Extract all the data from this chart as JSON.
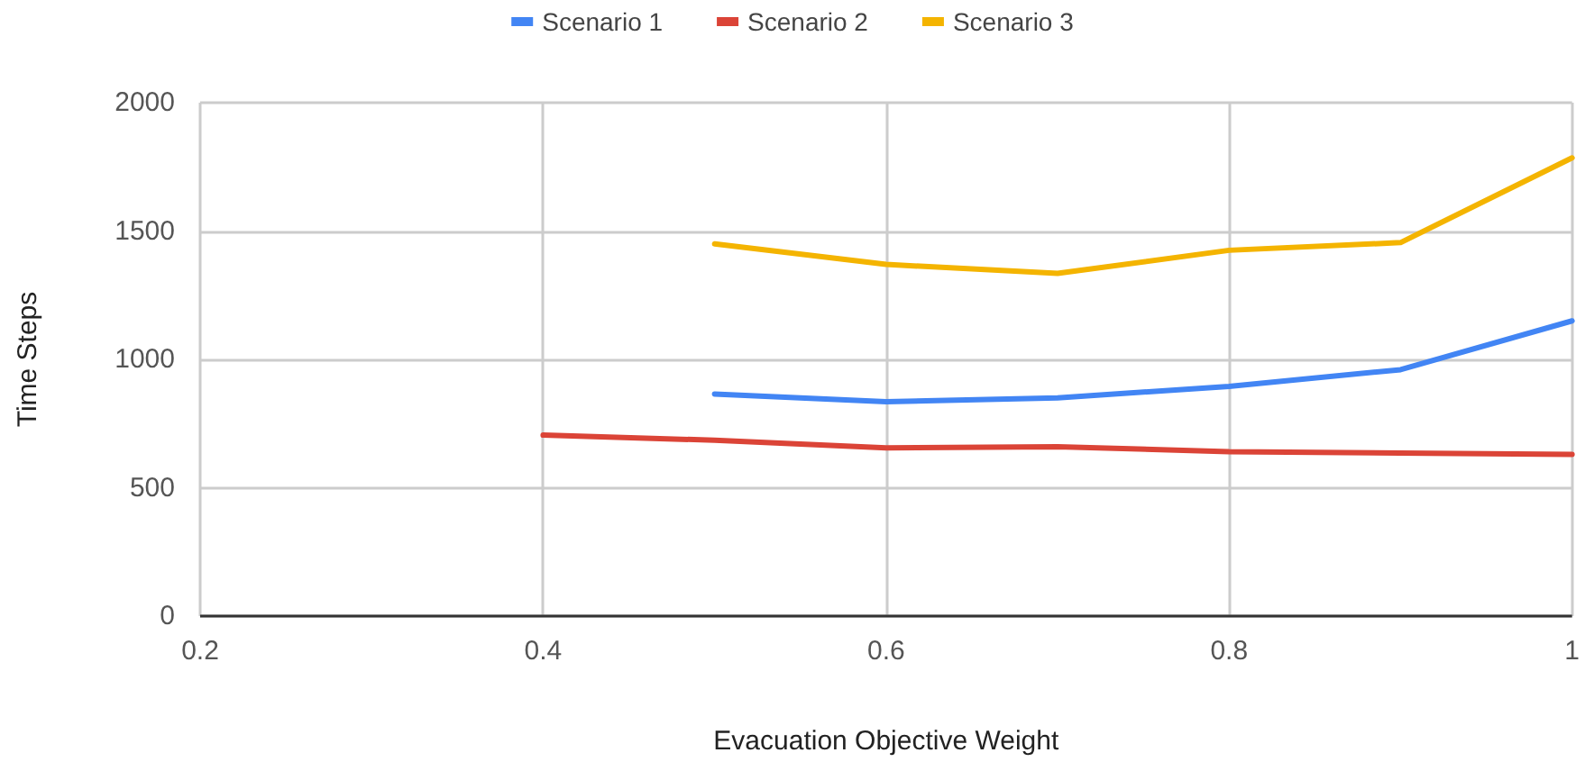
{
  "chart_data": {
    "type": "line",
    "xlabel": "Evacuation Objective Weight",
    "ylabel": "Time Steps",
    "xlim": [
      0.2,
      1
    ],
    "xticks": [
      0.2,
      0.4,
      0.6,
      0.8,
      1
    ],
    "ylim": [
      0,
      2000
    ],
    "yticks": [
      0,
      500,
      1000,
      1500,
      2000
    ],
    "grid": true,
    "legend": "top",
    "marker": "none",
    "line_style": "solid",
    "series": [
      {
        "name": "Scenario 1",
        "color": "#4285f4",
        "x": [
          0.5,
          0.6,
          0.7,
          0.8,
          0.9,
          1
        ],
        "values": [
          865,
          835,
          850,
          895,
          960,
          1150
        ]
      },
      {
        "name": "Scenario 2",
        "color": "#db4437",
        "x": [
          0.4,
          0.5,
          0.6,
          0.7,
          0.8,
          0.9,
          1
        ],
        "values": [
          705,
          685,
          655,
          660,
          640,
          635,
          630
        ]
      },
      {
        "name": "Scenario 3",
        "color": "#f4b400",
        "x": [
          0.5,
          0.6,
          0.7,
          0.8,
          0.9,
          1
        ],
        "values": [
          1450,
          1370,
          1335,
          1425,
          1455,
          1785
        ]
      }
    ]
  }
}
